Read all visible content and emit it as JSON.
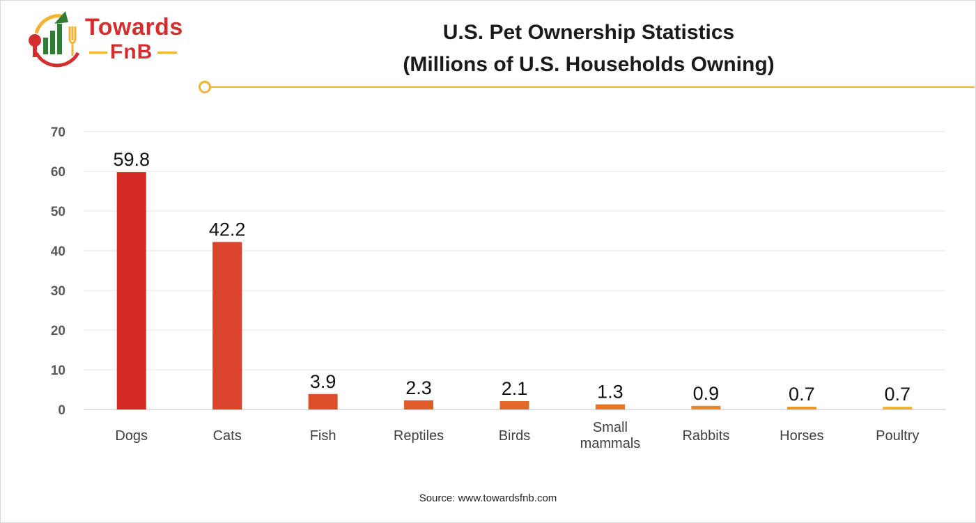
{
  "logo": {
    "line1": "Towards",
    "line2": "FnB"
  },
  "chart_data": {
    "type": "bar",
    "title_lines": [
      "U.S. Pet Ownership Statistics",
      "(Millions of U.S. Households Owning)"
    ],
    "categories": [
      "Dogs",
      "Cats",
      "Fish",
      "Reptiles",
      "Birds",
      "Small mammals",
      "Rabbits",
      "Horses",
      "Poultry"
    ],
    "category_lines": [
      [
        "Dogs"
      ],
      [
        "Cats"
      ],
      [
        "Fish"
      ],
      [
        "Reptiles"
      ],
      [
        "Birds"
      ],
      [
        "Small",
        "mammals"
      ],
      [
        "Rabbits"
      ],
      [
        "Horses"
      ],
      [
        "Poultry"
      ]
    ],
    "values": [
      59.8,
      42.2,
      3.9,
      2.3,
      2.1,
      1.3,
      0.9,
      0.7,
      0.7
    ],
    "value_labels": [
      "59.8",
      "42.2",
      "3.9",
      "2.3",
      "2.1",
      "1.3",
      "0.9",
      "0.7",
      "0.7"
    ],
    "ylim": [
      0,
      70
    ],
    "yticks": [
      0,
      10,
      20,
      30,
      40,
      50,
      60,
      70
    ],
    "grid": true,
    "legend": "none",
    "bar_colors": [
      "#d42a26",
      "#d9442a",
      "#dc4f28",
      "#df5c28",
      "#e26827",
      "#e57625",
      "#e88524",
      "#ec9622",
      "#f2b233"
    ]
  },
  "source": "Source: www.towardsfnb.com"
}
